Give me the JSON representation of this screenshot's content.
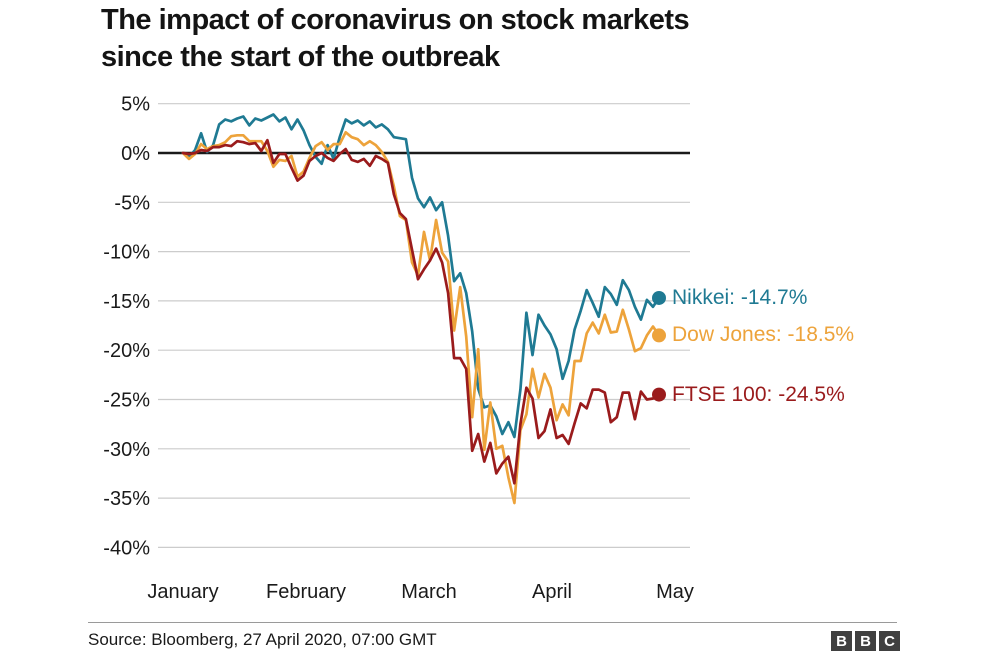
{
  "title": {
    "line1": "The impact of coronavirus on stock markets",
    "line2": "since the start of the outbreak"
  },
  "chart_data": {
    "type": "line",
    "title": "The impact of coronavirus on stock markets since the start of the outbreak",
    "x_axis": {
      "months": [
        "January",
        "February",
        "March",
        "April",
        "May"
      ],
      "note": "daily trading days, early January to 27 April 2020"
    },
    "y_axis": {
      "unit": "%",
      "ticks": [
        5,
        0,
        -5,
        -10,
        -15,
        -20,
        -25,
        -30,
        -35,
        -40
      ],
      "tick_labels": [
        "5%",
        "0%",
        "-5%",
        "-10%",
        "-15%",
        "-20%",
        "-25%",
        "-30%",
        "-35%",
        "-40%"
      ],
      "ylim": [
        -40,
        5
      ]
    },
    "grid": true,
    "legend_position": "right of line ends",
    "series": [
      {
        "name": "Nikkei",
        "legend_label": "Nikkei: -14.7%",
        "final_value": -14.7,
        "color": "#1f7a93",
        "values": [
          0.0,
          -0.4,
          0.3,
          2.0,
          0.1,
          0.8,
          2.9,
          3.4,
          3.2,
          3.5,
          3.7,
          2.8,
          3.5,
          3.3,
          3.6,
          3.9,
          3.2,
          3.6,
          2.4,
          3.4,
          2.3,
          0.8,
          -0.4,
          -1.1,
          0.8,
          -0.6,
          1.6,
          3.4,
          3.0,
          3.3,
          2.8,
          3.2,
          2.6,
          2.9,
          2.4,
          1.6,
          1.5,
          1.4,
          -2.5,
          -4.6,
          -5.5,
          -4.5,
          -5.8,
          -5.0,
          -8.4,
          -13.0,
          -12.2,
          -14.2,
          -18.1,
          -23.9,
          -25.8,
          -25.6,
          -26.7,
          -28.5,
          -27.3,
          -28.8,
          -24.0,
          -16.2,
          -20.5,
          -16.4,
          -17.5,
          -18.4,
          -19.9,
          -22.9,
          -21.1,
          -17.9,
          -16.0,
          -13.9,
          -15.2,
          -16.6,
          -13.6,
          -14.3,
          -15.4,
          -12.9,
          -13.9,
          -15.6,
          -16.9,
          -14.9,
          -15.6,
          -14.7
        ]
      },
      {
        "name": "Dow Jones",
        "legend_label": "Dow Jones: -18.5%",
        "final_value": -18.5,
        "color": "#eda33b",
        "values": [
          0.0,
          -0.6,
          -0.1,
          0.9,
          0.4,
          0.7,
          0.8,
          1.1,
          1.7,
          1.8,
          1.8,
          1.2,
          1.2,
          1.2,
          0.2,
          -1.4,
          -0.7,
          -0.8,
          -0.3,
          -2.4,
          -1.9,
          -0.5,
          0.7,
          1.1,
          0.3,
          0.9,
          0.9,
          2.1,
          1.6,
          1.4,
          0.8,
          1.2,
          0.8,
          0.1,
          -0.9,
          -3.4,
          -6.4,
          -6.8,
          -11.1,
          -12.4,
          -8.0,
          -10.9,
          -6.8,
          -10.1,
          -11.0,
          -18.0,
          -13.6,
          -18.6,
          -26.8,
          -19.9,
          -30.1,
          -25.3,
          -30.0,
          -29.7,
          -32.9,
          -35.5,
          -28.1,
          -26.5,
          -21.9,
          -24.8,
          -22.4,
          -23.8,
          -27.1,
          -25.5,
          -26.6,
          -21.1,
          -21.1,
          -18.3,
          -17.2,
          -18.3,
          -16.4,
          -18.2,
          -18.1,
          -15.9,
          -17.9,
          -20.1,
          -19.8,
          -18.5,
          -17.6,
          -18.5
        ]
      },
      {
        "name": "FTSE 100",
        "legend_label": "FTSE 100: -24.5%",
        "final_value": -24.5,
        "color": "#9a1b1c",
        "values": [
          0.0,
          -0.1,
          0.0,
          0.3,
          0.2,
          0.6,
          0.6,
          0.8,
          0.7,
          1.2,
          1.1,
          0.9,
          1.0,
          0.2,
          1.3,
          -1.0,
          -0.1,
          -0.1,
          -1.5,
          -2.8,
          -2.3,
          -0.8,
          -0.3,
          0.0,
          -0.5,
          -0.8,
          -0.1,
          0.4,
          -0.7,
          -0.9,
          -0.6,
          -1.3,
          -0.3,
          -0.6,
          -1.0,
          -4.2,
          -6.1,
          -6.7,
          -9.8,
          -12.8,
          -11.8,
          -10.9,
          -9.7,
          -11.1,
          -14.2,
          -20.8,
          -20.8,
          -21.9,
          -30.2,
          -28.5,
          -31.3,
          -29.4,
          -32.5,
          -31.5,
          -30.8,
          -33.5,
          -27.5,
          -23.8,
          -24.9,
          -28.9,
          -28.2,
          -26.0,
          -28.9,
          -28.6,
          -29.5,
          -27.4,
          -25.4,
          -25.9,
          -24.0,
          -24.0,
          -24.3,
          -27.3,
          -26.8,
          -24.3,
          -24.3,
          -27.0,
          -24.2,
          -25.0,
          -24.9,
          -24.5
        ]
      }
    ]
  },
  "footer": {
    "source": "Source: Bloomberg, 27 April 2020, 07:00 GMT",
    "logo_letters": [
      "B",
      "B",
      "C"
    ]
  },
  "colors": {
    "background": "#ffffff",
    "grid": "#cccccc",
    "zero_line": "#1a1a1a",
    "axis_text": "#1a1a1a",
    "logo_bg": "#404040"
  }
}
